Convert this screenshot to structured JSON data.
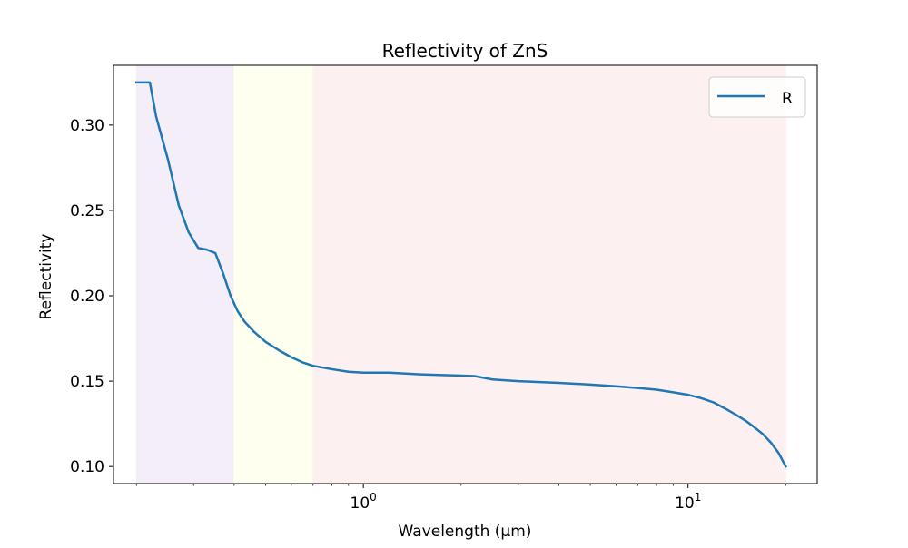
{
  "chart_data": {
    "type": "line",
    "title": "Reflectivity of ZnS",
    "xlabel": "Wavelength (µm)",
    "ylabel": "Reflectivity",
    "xscale": "log",
    "xlim": [
      0.17,
      25
    ],
    "ylim": [
      0.09,
      0.335
    ],
    "x_ticks": [
      {
        "value": 1,
        "base": "10",
        "exp": "0"
      },
      {
        "value": 10,
        "base": "10",
        "exp": "1"
      }
    ],
    "x_minor_ticks": [
      0.2,
      0.3,
      0.4,
      0.5,
      0.6,
      0.7,
      0.8,
      0.9,
      2,
      3,
      4,
      5,
      6,
      7,
      8,
      9,
      20
    ],
    "y_ticks": [
      {
        "value": 0.1,
        "label": "0.10"
      },
      {
        "value": 0.15,
        "label": "0.15"
      },
      {
        "value": 0.2,
        "label": "0.20"
      },
      {
        "value": 0.25,
        "label": "0.25"
      },
      {
        "value": 0.3,
        "label": "0.30"
      }
    ],
    "grid": false,
    "legend_position": "top-right",
    "bands": [
      {
        "x0": 0.2,
        "x1": 0.4,
        "color": "#f3eef8"
      },
      {
        "x0": 0.4,
        "x1": 0.7,
        "color": "#fffff0"
      },
      {
        "x0": 0.7,
        "x1": 20,
        "color": "#fdf0f0"
      }
    ],
    "series": [
      {
        "name": "R",
        "color": "#1f77b4",
        "x": [
          0.2,
          0.22,
          0.23,
          0.25,
          0.27,
          0.29,
          0.31,
          0.33,
          0.35,
          0.37,
          0.39,
          0.41,
          0.43,
          0.46,
          0.5,
          0.55,
          0.6,
          0.65,
          0.7,
          0.8,
          0.9,
          1.0,
          1.2,
          1.5,
          1.8,
          2.2,
          2.5,
          3,
          4,
          5,
          6,
          7,
          8,
          9,
          10,
          11,
          12,
          13,
          14,
          15,
          16,
          17,
          18,
          19,
          20
        ],
        "y": [
          0.325,
          0.325,
          0.305,
          0.28,
          0.253,
          0.237,
          0.228,
          0.227,
          0.225,
          0.213,
          0.2,
          0.191,
          0.185,
          0.179,
          0.173,
          0.168,
          0.164,
          0.161,
          0.159,
          0.157,
          0.1555,
          0.155,
          0.155,
          0.154,
          0.1535,
          0.153,
          0.151,
          0.15,
          0.149,
          0.148,
          0.147,
          0.146,
          0.145,
          0.1435,
          0.142,
          0.14,
          0.1375,
          0.134,
          0.1305,
          0.127,
          0.123,
          0.119,
          0.114,
          0.108,
          0.1
        ]
      }
    ]
  }
}
